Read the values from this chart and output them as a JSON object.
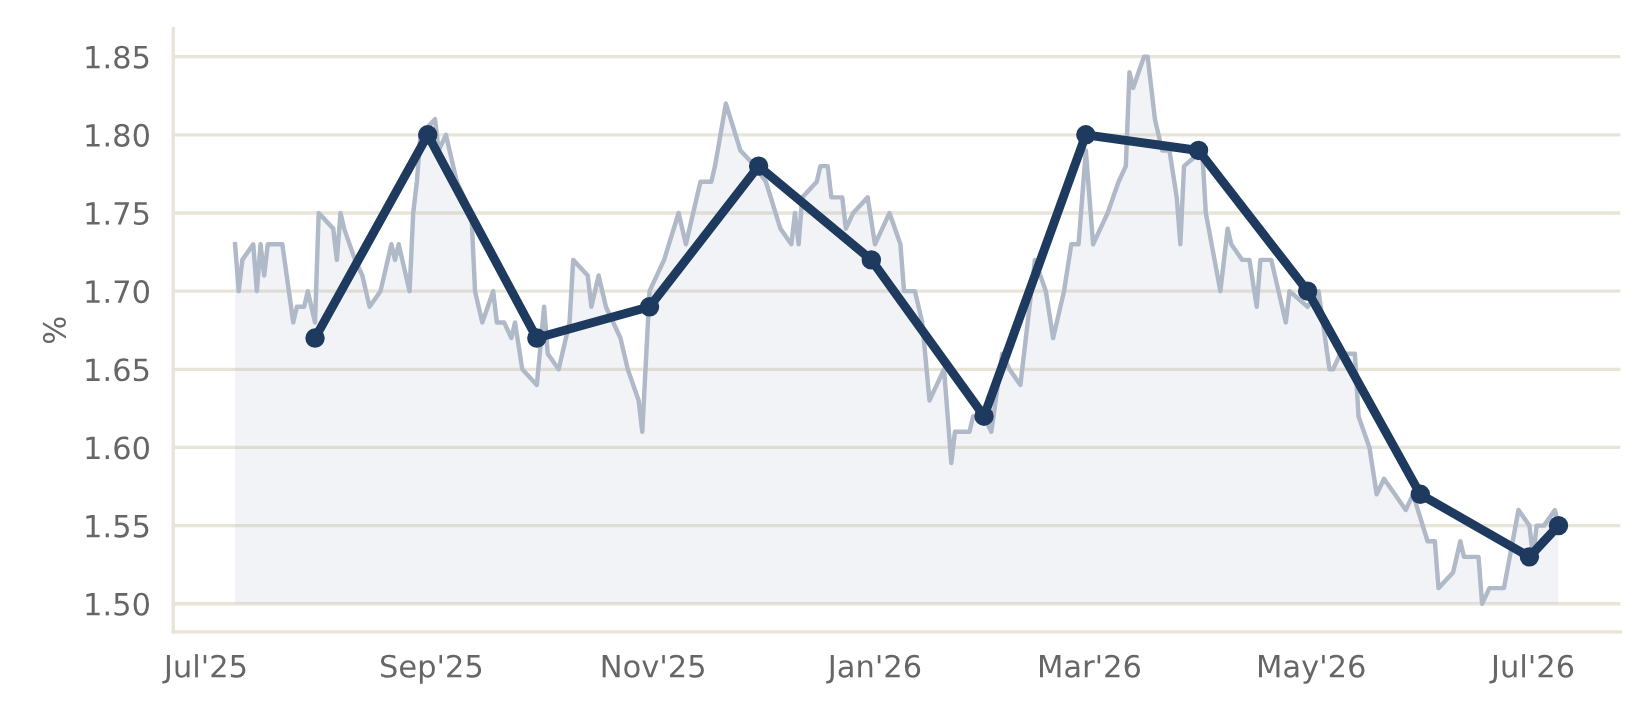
{
  "chart_data": {
    "type": "line",
    "ylabel": "%",
    "xlim": [
      "2025-06-22",
      "2026-07-25"
    ],
    "ylim": [
      1.482,
      1.868
    ],
    "xticks": [
      {
        "value": "2025-07-01",
        "label": "Jul'25"
      },
      {
        "value": "2025-09-01",
        "label": "Sep'25"
      },
      {
        "value": "2025-11-01",
        "label": "Nov'25"
      },
      {
        "value": "2026-01-01",
        "label": "Jan'26"
      },
      {
        "value": "2026-03-01",
        "label": "Mar'26"
      },
      {
        "value": "2026-05-01",
        "label": "May'26"
      },
      {
        "value": "2026-07-01",
        "label": "Jul'26"
      }
    ],
    "yticks": [
      {
        "value": 1.5,
        "label": "1.50"
      },
      {
        "value": 1.55,
        "label": "1.55"
      },
      {
        "value": 1.6,
        "label": "1.60"
      },
      {
        "value": 1.65,
        "label": "1.65"
      },
      {
        "value": 1.7,
        "label": "1.70"
      },
      {
        "value": 1.75,
        "label": "1.75"
      },
      {
        "value": 1.8,
        "label": "1.80"
      },
      {
        "value": 1.85,
        "label": "1.85"
      }
    ],
    "grid": "y",
    "series": [
      {
        "type": "area",
        "color": "#b0b9c7",
        "marker": "none",
        "x": [
          "2025-07-09",
          "2025-07-10",
          "2025-07-11",
          "2025-07-14",
          "2025-07-15",
          "2025-07-16",
          "2025-07-17",
          "2025-07-18",
          "2025-07-22",
          "2025-07-25",
          "2025-07-26",
          "2025-07-28",
          "2025-07-29",
          "2025-07-31",
          "2025-08-01",
          "2025-08-05",
          "2025-08-06",
          "2025-08-07",
          "2025-08-08",
          "2025-08-11",
          "2025-08-13",
          "2025-08-15",
          "2025-08-18",
          "2025-08-21",
          "2025-08-22",
          "2025-08-23",
          "2025-08-26",
          "2025-08-27",
          "2025-08-28",
          "2025-08-29",
          "2025-09-02",
          "2025-09-03",
          "2025-09-05",
          "2025-09-08",
          "2025-09-12",
          "2025-09-13",
          "2025-09-15",
          "2025-09-18",
          "2025-09-19",
          "2025-09-21",
          "2025-09-23",
          "2025-09-24",
          "2025-09-26",
          "2025-09-30",
          "2025-10-02",
          "2025-10-03",
          "2025-10-06",
          "2025-10-09",
          "2025-10-10",
          "2025-10-14",
          "2025-10-15",
          "2025-10-17",
          "2025-10-19",
          "2025-10-23",
          "2025-10-25",
          "2025-10-28",
          "2025-10-29",
          "2025-10-31",
          "2025-11-04",
          "2025-11-08",
          "2025-11-10",
          "2025-11-14",
          "2025-11-17",
          "2025-11-18",
          "2025-11-21",
          "2025-11-25",
          "2025-11-29",
          "2025-12-02",
          "2025-12-06",
          "2025-12-09",
          "2025-12-10",
          "2025-12-11",
          "2025-12-12",
          "2025-12-16",
          "2025-12-17",
          "2025-12-19",
          "2025-12-20",
          "2025-12-23",
          "2025-12-24",
          "2025-12-26",
          "2025-12-30",
          "2026-01-01",
          "2026-01-03",
          "2026-01-05",
          "2026-01-08",
          "2026-01-09",
          "2026-01-12",
          "2026-01-14",
          "2026-01-16",
          "2026-01-18",
          "2026-01-20",
          "2026-01-21",
          "2026-01-22",
          "2026-01-23",
          "2026-01-27",
          "2026-01-28",
          "2026-01-31",
          "2026-02-02",
          "2026-02-05",
          "2026-02-07",
          "2026-02-10",
          "2026-02-12",
          "2026-02-14",
          "2026-02-17",
          "2026-02-19",
          "2026-02-22",
          "2026-02-24",
          "2026-02-26",
          "2026-02-28",
          "2026-03-02",
          "2026-03-04",
          "2026-03-06",
          "2026-03-09",
          "2026-03-11",
          "2026-03-12",
          "2026-03-13",
          "2026-03-16",
          "2026-03-17",
          "2026-03-19",
          "2026-03-21",
          "2026-03-23",
          "2026-03-25",
          "2026-03-26",
          "2026-03-27",
          "2026-04-01",
          "2026-04-02",
          "2026-04-06",
          "2026-04-08",
          "2026-04-09",
          "2026-04-12",
          "2026-04-14",
          "2026-04-16",
          "2026-04-17",
          "2026-04-20",
          "2026-04-24",
          "2026-04-25",
          "2026-04-30",
          "2026-05-03",
          "2026-05-06",
          "2026-05-07",
          "2026-05-09",
          "2026-05-13",
          "2026-05-14",
          "2026-05-17",
          "2026-05-19",
          "2026-05-21",
          "2026-05-24",
          "2026-05-27",
          "2026-05-29",
          "2026-06-02",
          "2026-06-04",
          "2026-06-05",
          "2026-06-09",
          "2026-06-11",
          "2026-06-12",
          "2026-06-16",
          "2026-06-17",
          "2026-06-19",
          "2026-06-23",
          "2026-06-27",
          "2026-06-30",
          "2026-07-01",
          "2026-07-02",
          "2026-07-04",
          "2026-07-07",
          "2026-07-08"
        ],
        "values": [
          1.73,
          1.7,
          1.72,
          1.73,
          1.7,
          1.73,
          1.71,
          1.73,
          1.73,
          1.68,
          1.69,
          1.69,
          1.7,
          1.68,
          1.75,
          1.74,
          1.72,
          1.75,
          1.74,
          1.72,
          1.71,
          1.69,
          1.7,
          1.73,
          1.72,
          1.73,
          1.7,
          1.75,
          1.77,
          1.8,
          1.81,
          1.79,
          1.8,
          1.77,
          1.75,
          1.7,
          1.68,
          1.7,
          1.68,
          1.68,
          1.67,
          1.68,
          1.65,
          1.64,
          1.69,
          1.66,
          1.65,
          1.68,
          1.72,
          1.71,
          1.69,
          1.71,
          1.69,
          1.67,
          1.65,
          1.63,
          1.61,
          1.7,
          1.72,
          1.75,
          1.73,
          1.77,
          1.77,
          1.78,
          1.82,
          1.79,
          1.78,
          1.77,
          1.74,
          1.73,
          1.75,
          1.73,
          1.76,
          1.77,
          1.78,
          1.78,
          1.76,
          1.76,
          1.74,
          1.75,
          1.76,
          1.73,
          1.74,
          1.75,
          1.73,
          1.7,
          1.7,
          1.68,
          1.63,
          1.64,
          1.65,
          1.62,
          1.59,
          1.61,
          1.61,
          1.62,
          1.62,
          1.61,
          1.66,
          1.65,
          1.64,
          1.68,
          1.72,
          1.7,
          1.67,
          1.7,
          1.73,
          1.73,
          1.79,
          1.73,
          1.74,
          1.75,
          1.77,
          1.78,
          1.84,
          1.83,
          1.85,
          1.85,
          1.81,
          1.79,
          1.79,
          1.76,
          1.73,
          1.78,
          1.79,
          1.75,
          1.7,
          1.74,
          1.73,
          1.72,
          1.72,
          1.69,
          1.72,
          1.72,
          1.68,
          1.7,
          1.69,
          1.7,
          1.65,
          1.65,
          1.66,
          1.66,
          1.62,
          1.6,
          1.57,
          1.58,
          1.57,
          1.56,
          1.57,
          1.54,
          1.54,
          1.51,
          1.52,
          1.54,
          1.53,
          1.53,
          1.5,
          1.51,
          1.51,
          1.56,
          1.55,
          1.53,
          1.55,
          1.55,
          1.56,
          1.55
        ]
      },
      {
        "color": "#1e3a5f",
        "marker": "circle",
        "x": [
          "2025-07-31",
          "2025-08-31",
          "2025-09-30",
          "2025-10-31",
          "2025-11-30",
          "2025-12-31",
          "2026-01-31",
          "2026-02-28",
          "2026-03-31",
          "2026-04-30",
          "2026-05-31",
          "2026-06-30",
          "2026-07-08"
        ],
        "values": [
          1.67,
          1.8,
          1.67,
          1.69,
          1.78,
          1.72,
          1.62,
          1.8,
          1.79,
          1.7,
          1.57,
          1.53,
          1.55
        ]
      }
    ]
  }
}
